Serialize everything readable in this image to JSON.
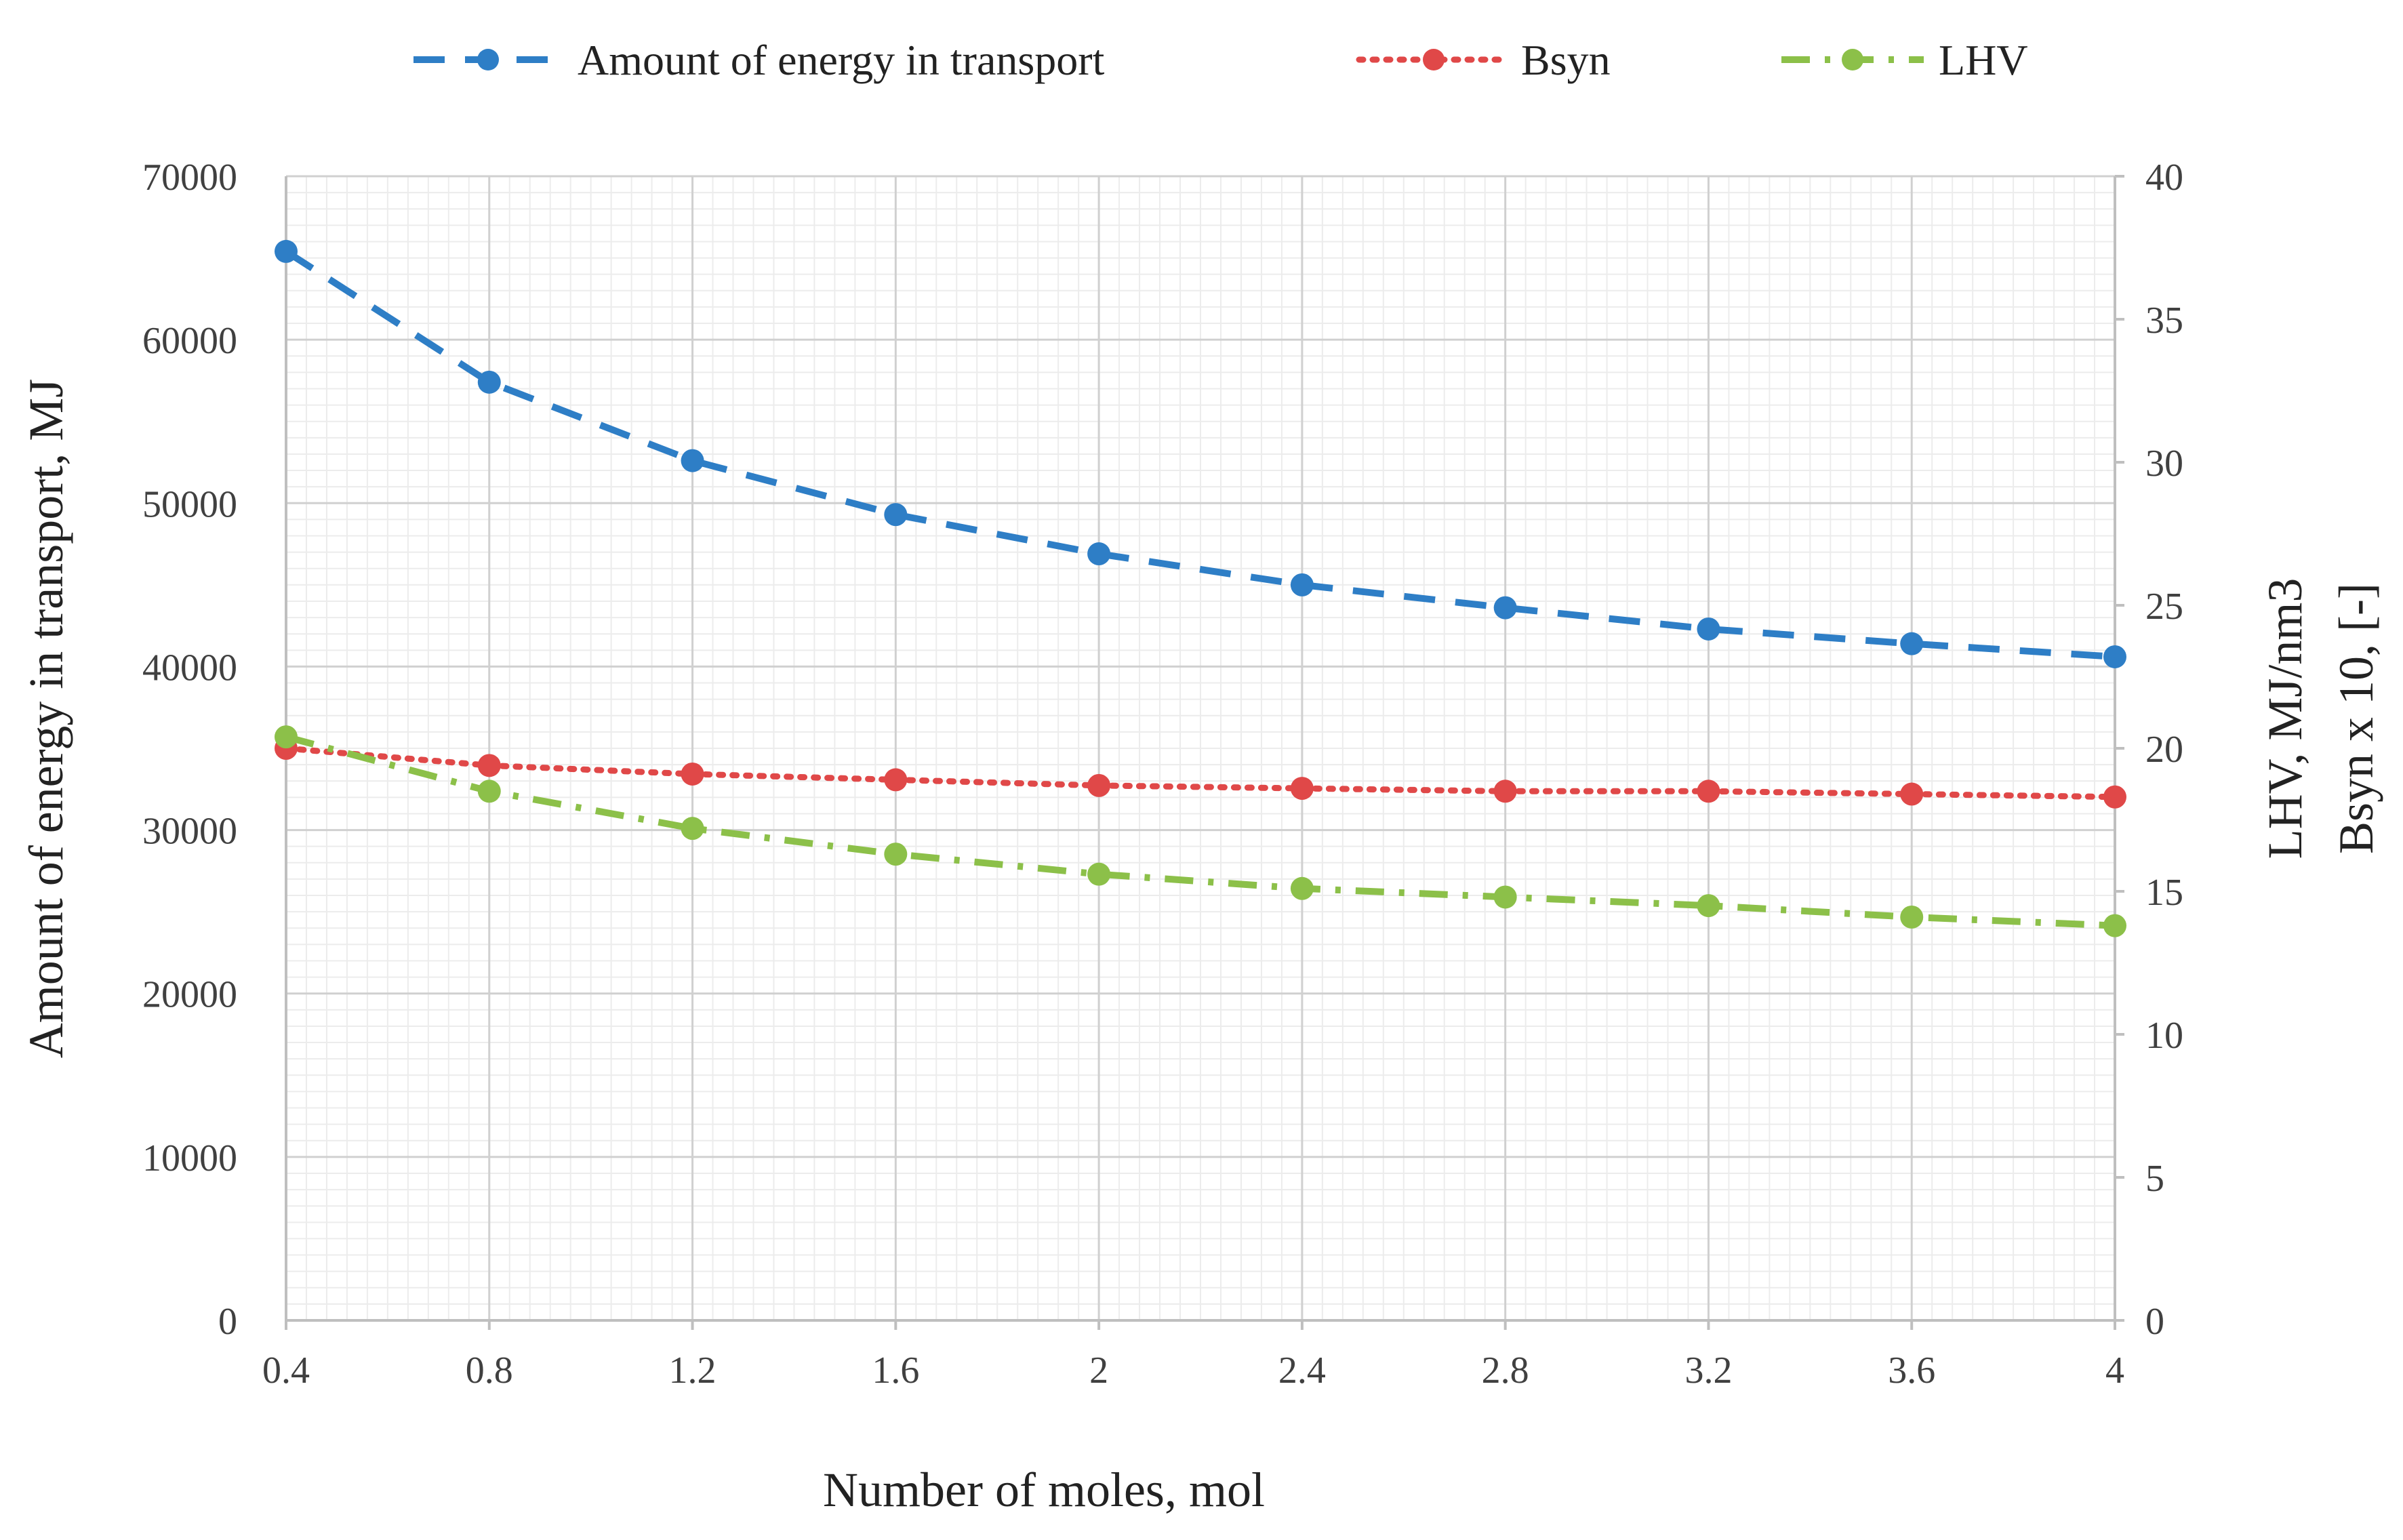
{
  "chart_data": {
    "type": "line",
    "title": "",
    "xlabel": "Number of moles, mol",
    "ylabel_left": "Amount of energy in transport, MJ",
    "ylabel_right_1": "LHV, MJ/nm3",
    "ylabel_right_2": "Bsyn x 10, [-]",
    "x": [
      0.4,
      0.8,
      1.2,
      1.6,
      2,
      2.4,
      2.8,
      3.2,
      3.6,
      4
    ],
    "x_tick_labels": [
      "0.4",
      "0.8",
      "1.2",
      "1.6",
      "2",
      "2.4",
      "2.8",
      "3.2",
      "3.6",
      "4"
    ],
    "ylim_left": [
      0,
      70000
    ],
    "y_left_ticks": [
      "0",
      "10000",
      "20000",
      "30000",
      "40000",
      "50000",
      "60000",
      "70000"
    ],
    "ylim_right": [
      0,
      40
    ],
    "y_right_ticks": [
      "0",
      "5",
      "10",
      "15",
      "20",
      "25",
      "30",
      "35",
      "40"
    ],
    "grid": true,
    "legend_position": "top",
    "series": [
      {
        "name": "Amount of energy in transport",
        "axis": "left",
        "color": "#2E7EC6",
        "style": "dash",
        "values": [
          65400,
          57400,
          52600,
          49300,
          46900,
          45000,
          43600,
          42300,
          41400,
          40600
        ]
      },
      {
        "name": "Bsyn",
        "axis": "right",
        "color": "#E04848",
        "style": "dot",
        "values": [
          20.0,
          19.4,
          19.1,
          18.9,
          18.7,
          18.6,
          18.5,
          18.5,
          18.4,
          18.3
        ]
      },
      {
        "name": "LHV",
        "axis": "right",
        "color": "#8CC049",
        "style": "dashdot",
        "values": [
          20.4,
          18.5,
          17.2,
          16.3,
          15.6,
          15.1,
          14.8,
          14.5,
          14.1,
          13.8
        ]
      }
    ]
  }
}
